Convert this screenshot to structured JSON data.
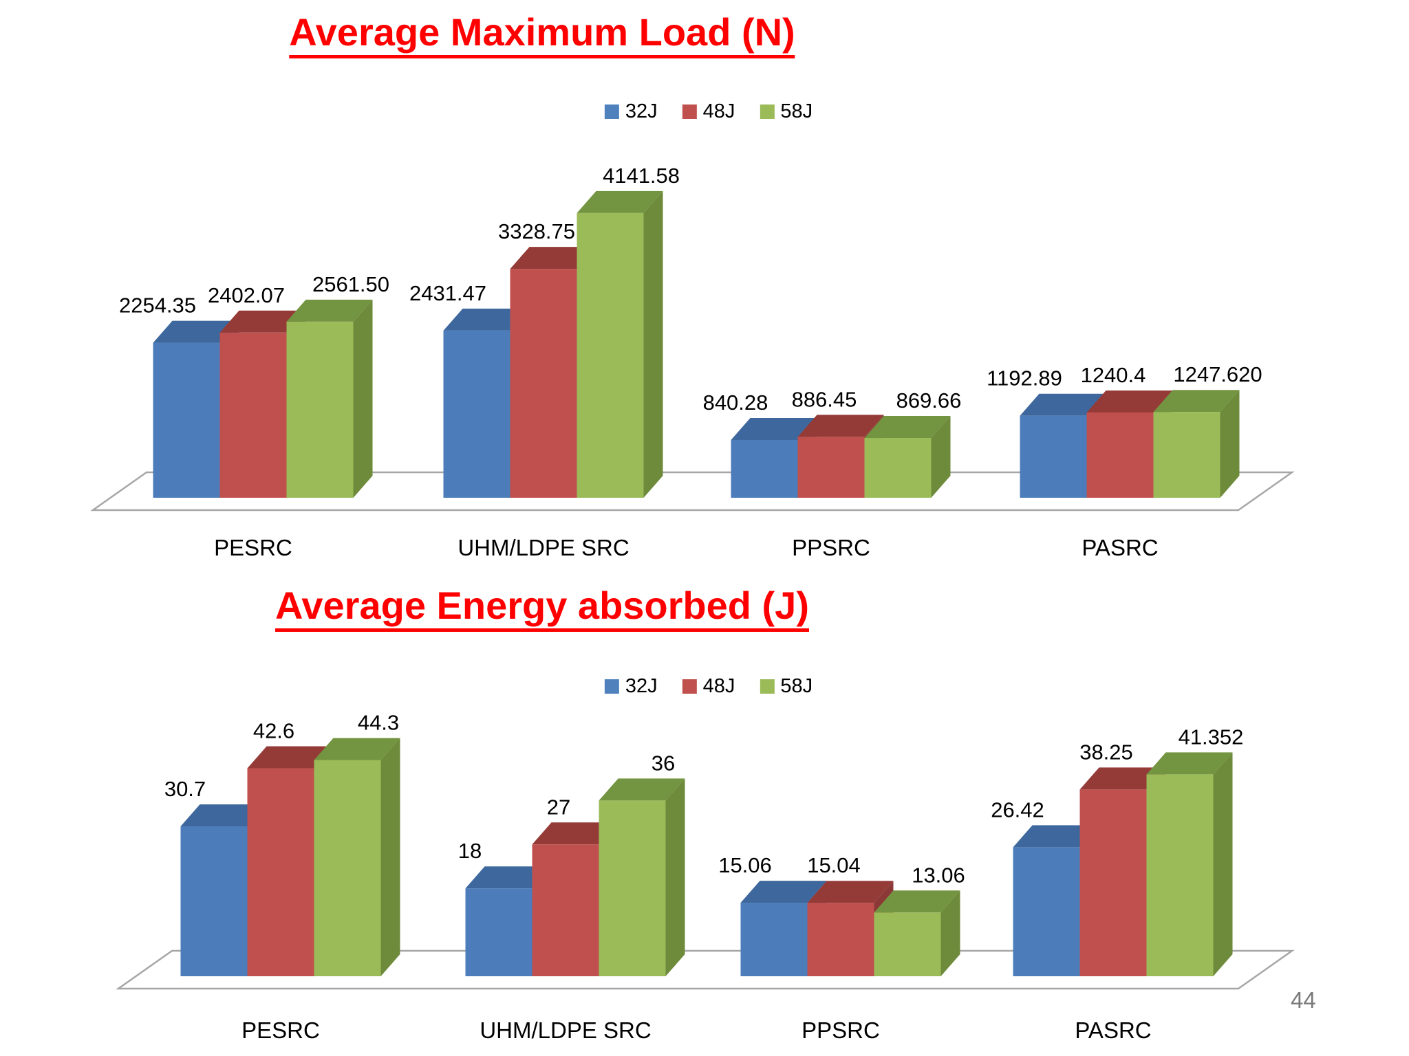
{
  "page": {
    "number": "44"
  },
  "palette": {
    "series_blue": "#4F81BD",
    "series_red": "#C0504D",
    "series_green": "#9BBB59",
    "title_red": "#FF0000",
    "floor_outline": "#A6A6A6",
    "page_number_gray": "#7A7A7A"
  },
  "chart_data": [
    {
      "type": "bar",
      "projection": "3d",
      "title": "Average Maximum Load (N)",
      "xlabel": "",
      "ylabel": "",
      "ylim": [
        0,
        4500
      ],
      "grid": false,
      "legend_position": "top-center",
      "data_labels": true,
      "categories": [
        "PESRC",
        "UHM/LDPE SRC",
        "PPSRC",
        "PASRC"
      ],
      "series": [
        {
          "name": "32J",
          "color": "#4F81BD",
          "values": [
            2254.35,
            2431.47,
            840.28,
            1192.89
          ],
          "value_labels": [
            "2254.35",
            "2431.47",
            "840.28",
            "1192.89"
          ]
        },
        {
          "name": "48J",
          "color": "#C0504D",
          "values": [
            2402.07,
            3328.75,
            886.45,
            1240.4
          ],
          "value_labels": [
            "2402.07",
            "3328.75",
            "886.45",
            "1240.4"
          ]
        },
        {
          "name": "58J",
          "color": "#9BBB59",
          "values": [
            2561.5,
            4141.58,
            869.66,
            1247.62
          ],
          "value_labels": [
            "2561.50",
            "4141.58",
            "869.66",
            "1247.620"
          ]
        }
      ]
    },
    {
      "type": "bar",
      "projection": "3d",
      "title": "Average Energy absorbed (J)",
      "xlabel": "",
      "ylabel": "",
      "ylim": [
        0,
        50
      ],
      "grid": false,
      "legend_position": "top-center",
      "data_labels": true,
      "categories": [
        "PESRC",
        "UHM/LDPE SRC",
        "PPSRC",
        "PASRC"
      ],
      "series": [
        {
          "name": "32J",
          "color": "#4F81BD",
          "values": [
            30.7,
            18,
            15.06,
            26.42
          ],
          "value_labels": [
            "30.7",
            "18",
            "15.06",
            "26.42"
          ]
        },
        {
          "name": "48J",
          "color": "#C0504D",
          "values": [
            42.6,
            27,
            15.04,
            38.25
          ],
          "value_labels": [
            "42.6",
            "27",
            "15.04",
            "38.25"
          ]
        },
        {
          "name": "58J",
          "color": "#9BBB59",
          "values": [
            44.3,
            36,
            13.06,
            41.352
          ],
          "value_labels": [
            "44.3",
            "36",
            "13.06",
            "41.352"
          ]
        }
      ]
    }
  ]
}
